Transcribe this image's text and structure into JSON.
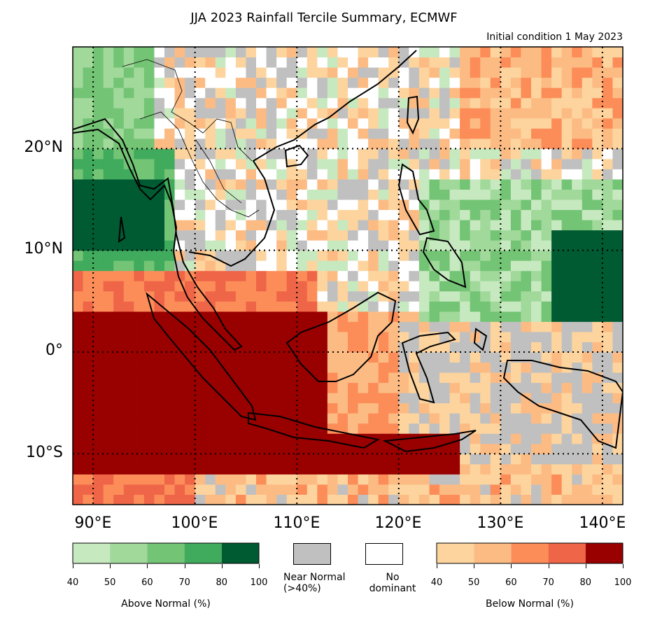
{
  "title": "JJA 2023 Rainfall Tercile Summary, ECMWF",
  "subtitle": "Initial condition 1 May 2023",
  "lat_labels": [
    "20°N",
    "10°N",
    "0°",
    "10°S"
  ],
  "lon_labels": [
    "90°E",
    "100°E",
    "110°E",
    "120°E",
    "130°E",
    "140°E"
  ],
  "legend": {
    "above": {
      "label": "Above Normal (%)",
      "ticks": [
        "40",
        "50",
        "60",
        "70",
        "80",
        "100"
      ],
      "colors": [
        "#c7e9c0",
        "#a1d99b",
        "#74c476",
        "#41ab5d",
        "#005a32"
      ]
    },
    "near": {
      "label": "Near Normal (>40%)",
      "label_lines": [
        "Near Normal",
        "(>40%)"
      ],
      "color": "#c0c0c0"
    },
    "none": {
      "label": "No dominant",
      "label_lines": [
        "No",
        "dominant"
      ],
      "color": "#ffffff"
    },
    "below": {
      "label": "Below Normal (%)",
      "ticks": [
        "40",
        "50",
        "60",
        "70",
        "80",
        "100"
      ],
      "colors": [
        "#fdd49e",
        "#fdbb84",
        "#fc8d59",
        "#ef6548",
        "#990000"
      ]
    }
  },
  "map": {
    "lon_range": [
      88,
      142
    ],
    "lat_range": [
      -15,
      30
    ],
    "grid_lons": [
      90,
      100,
      110,
      120,
      130,
      140
    ],
    "grid_lats": [
      20,
      10,
      0,
      -10
    ]
  }
}
